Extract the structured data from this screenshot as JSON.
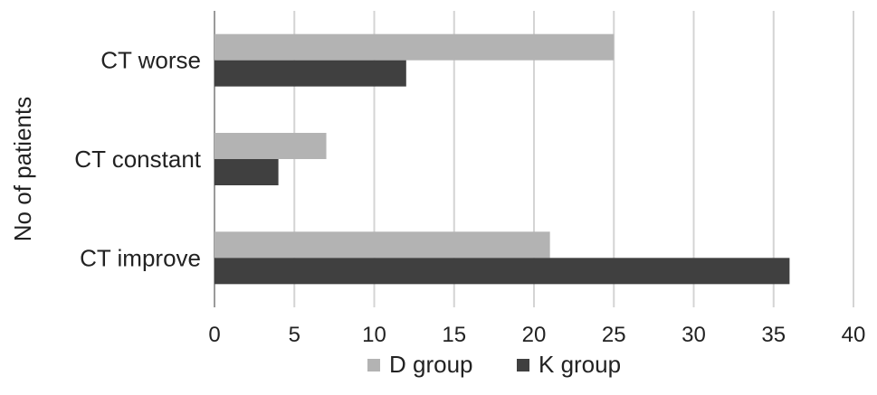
{
  "chart_data": {
    "type": "bar",
    "orientation": "horizontal",
    "categories": [
      "CT worse",
      "CT constant",
      "CT improve"
    ],
    "series": [
      {
        "name": "D group",
        "values": [
          25,
          7,
          21
        ],
        "color": "#b3b3b3"
      },
      {
        "name": "K group",
        "values": [
          12,
          4,
          36
        ],
        "color": "#404040"
      }
    ],
    "xlim": [
      0,
      40
    ],
    "xticks": [
      0,
      5,
      10,
      15,
      20,
      25,
      30,
      35,
      40
    ],
    "xlabel": "",
    "ylabel": "No of patients",
    "grid": "vertical",
    "legend_position": "bottom"
  }
}
